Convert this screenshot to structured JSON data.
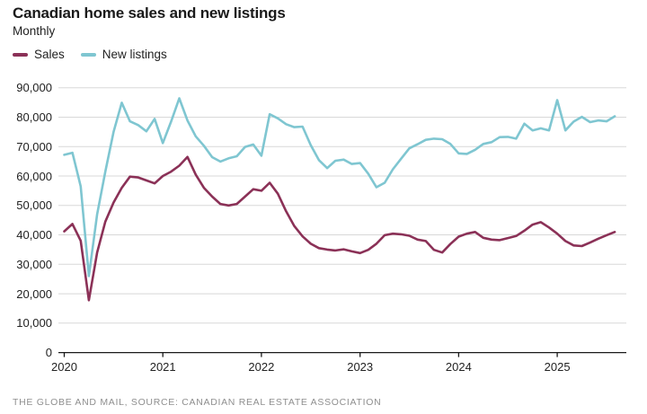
{
  "header": {
    "title": "Canadian home sales and new listings",
    "subtitle": "Monthly"
  },
  "legend": [
    {
      "label": "Sales",
      "color": "#8b3157"
    },
    {
      "label": "New listings",
      "color": "#7fc6d1"
    }
  ],
  "footer": {
    "source": "THE GLOBE AND MAIL, SOURCE: CANADIAN REAL ESTATE ASSOCIATION"
  },
  "colors": {
    "sales_line": "#8b3157",
    "new_listings_line": "#7fc6d1",
    "gridline": "#d8d8d8",
    "axis": "#1a1a1a",
    "text": "#222222",
    "source_text": "#8f8f8f"
  },
  "chart_data": {
    "type": "line",
    "title": "Canadian home sales and new listings",
    "subtitle": "Monthly",
    "grid": "horizontal",
    "legend_position": "top-left",
    "ylim": [
      0,
      90000
    ],
    "y_ticks": [
      0,
      10000,
      20000,
      30000,
      40000,
      50000,
      60000,
      70000,
      80000,
      90000
    ],
    "y_tick_labels": [
      "0",
      "10,000",
      "20,000",
      "30,000",
      "40,000",
      "50,000",
      "60,000",
      "70,000",
      "80,000",
      "90,000"
    ],
    "x_tick_labels": [
      "2020",
      "2021",
      "2022",
      "2023",
      "2024",
      "2025"
    ],
    "months": [
      "2020-01",
      "2020-02",
      "2020-03",
      "2020-04",
      "2020-05",
      "2020-06",
      "2020-07",
      "2020-08",
      "2020-09",
      "2020-10",
      "2020-11",
      "2020-12",
      "2021-01",
      "2021-02",
      "2021-03",
      "2021-04",
      "2021-05",
      "2021-06",
      "2021-07",
      "2021-08",
      "2021-09",
      "2021-10",
      "2021-11",
      "2021-12",
      "2022-01",
      "2022-02",
      "2022-03",
      "2022-04",
      "2022-05",
      "2022-06",
      "2022-07",
      "2022-08",
      "2022-09",
      "2022-10",
      "2022-11",
      "2022-12",
      "2023-01",
      "2023-02",
      "2023-03",
      "2023-04",
      "2023-05",
      "2023-06",
      "2023-07",
      "2023-08",
      "2023-09",
      "2023-10",
      "2023-11",
      "2023-12",
      "2024-01",
      "2024-02",
      "2024-03",
      "2024-04",
      "2024-05",
      "2024-06",
      "2024-07",
      "2024-08",
      "2024-09",
      "2024-10",
      "2024-11",
      "2024-12",
      "2025-01",
      "2025-02",
      "2025-03",
      "2025-04",
      "2025-05",
      "2025-06",
      "2025-07",
      "2025-08"
    ],
    "series": [
      {
        "name": "Sales",
        "color": "#8b3157",
        "values": [
          41200,
          43700,
          38000,
          17800,
          34000,
          44500,
          51000,
          56000,
          59800,
          59500,
          58500,
          57500,
          60000,
          61500,
          63500,
          66500,
          60500,
          56000,
          53000,
          50500,
          50000,
          50500,
          53000,
          55500,
          55000,
          57700,
          54000,
          48000,
          43000,
          39500,
          37000,
          35500,
          35000,
          34700,
          35100,
          34400,
          33800,
          34900,
          37000,
          39900,
          40400,
          40200,
          39700,
          38400,
          37900,
          34900,
          34000,
          36900,
          39400,
          40400,
          41000,
          39000,
          38400,
          38200,
          38900,
          39600,
          41400,
          43500,
          44300,
          42500,
          40400,
          37900,
          36400,
          36200,
          37400,
          38700,
          39900,
          41000
        ]
      },
      {
        "name": "New listings",
        "color": "#7fc6d1",
        "values": [
          67200,
          67900,
          56500,
          26000,
          47000,
          61500,
          75000,
          84900,
          78600,
          77300,
          75200,
          79400,
          71200,
          78500,
          86400,
          78900,
          73500,
          70300,
          66400,
          64900,
          66000,
          66700,
          69900,
          70700,
          66900,
          81000,
          79600,
          77600,
          76600,
          76800,
          70500,
          65400,
          62700,
          65200,
          65600,
          64100,
          64400,
          60800,
          56200,
          57700,
          62300,
          65900,
          69400,
          70800,
          72300,
          72700,
          72500,
          70900,
          67700,
          67500,
          68900,
          70900,
          71500,
          73200,
          73300,
          72700,
          77800,
          75500,
          76200,
          75500,
          85800,
          75500,
          78500,
          80100,
          78300,
          78900,
          78600,
          80300
        ]
      }
    ]
  }
}
